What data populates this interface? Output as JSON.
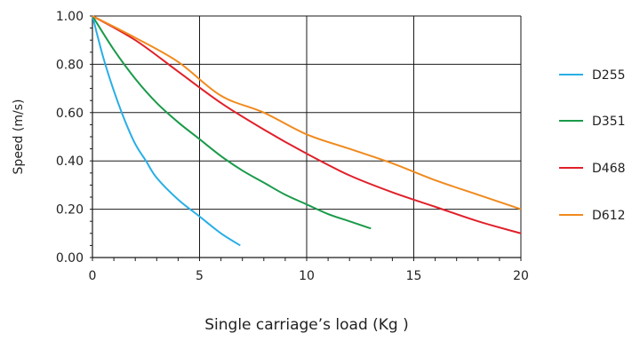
{
  "chart_data": {
    "type": "line",
    "xlabel": "Single carriage’s load (Kg )",
    "ylabel": "Speed (m/s)",
    "xlim": [
      0,
      20
    ],
    "ylim": [
      0,
      1
    ],
    "x_ticks": [
      0,
      5,
      10,
      15,
      20
    ],
    "x_tick_labels": [
      "0",
      "5",
      "10",
      "15",
      "20"
    ],
    "y_ticks": [
      0,
      0.2,
      0.4,
      0.6,
      0.8,
      1.0
    ],
    "y_tick_labels": [
      "0.00",
      "0.20",
      "0.40",
      "0.60",
      "0.80",
      "1.00"
    ],
    "grid": true,
    "legend_position": "right",
    "series": [
      {
        "name": "D255",
        "color": "#29aee6",
        "points": [
          [
            0,
            1.0
          ],
          [
            0.5,
            0.83
          ],
          [
            1,
            0.69
          ],
          [
            1.5,
            0.57
          ],
          [
            2,
            0.47
          ],
          [
            2.5,
            0.4
          ],
          [
            3,
            0.33
          ],
          [
            4,
            0.24
          ],
          [
            5,
            0.17
          ],
          [
            6,
            0.1
          ],
          [
            6.9,
            0.05
          ]
        ]
      },
      {
        "name": "D351",
        "color": "#1a9a4a",
        "points": [
          [
            0,
            1.0
          ],
          [
            1,
            0.86
          ],
          [
            2,
            0.74
          ],
          [
            3,
            0.64
          ],
          [
            4,
            0.56
          ],
          [
            5,
            0.49
          ],
          [
            6,
            0.42
          ],
          [
            7,
            0.36
          ],
          [
            8,
            0.31
          ],
          [
            9,
            0.26
          ],
          [
            10,
            0.22
          ],
          [
            11,
            0.18
          ],
          [
            12,
            0.15
          ],
          [
            13,
            0.12
          ]
        ]
      },
      {
        "name": "D468",
        "color": "#e0202a",
        "points": [
          [
            0,
            1.0
          ],
          [
            2,
            0.9
          ],
          [
            4,
            0.77
          ],
          [
            6,
            0.64
          ],
          [
            8,
            0.53
          ],
          [
            10,
            0.43
          ],
          [
            12,
            0.34
          ],
          [
            14,
            0.27
          ],
          [
            16,
            0.21
          ],
          [
            18,
            0.15
          ],
          [
            20,
            0.1
          ]
        ]
      },
      {
        "name": "D612",
        "color": "#f08a1e",
        "points": [
          [
            0,
            1.0
          ],
          [
            2,
            0.91
          ],
          [
            4,
            0.81
          ],
          [
            6,
            0.67
          ],
          [
            8,
            0.6
          ],
          [
            10,
            0.51
          ],
          [
            12,
            0.45
          ],
          [
            14,
            0.39
          ],
          [
            16,
            0.32
          ],
          [
            18,
            0.26
          ],
          [
            20,
            0.2
          ]
        ]
      }
    ]
  }
}
